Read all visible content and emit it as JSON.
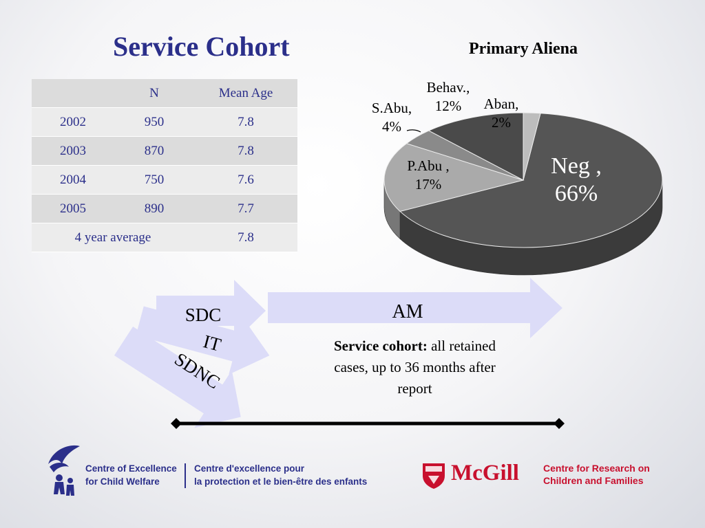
{
  "slide": {
    "title": "Service Cohort"
  },
  "table": {
    "headers": [
      "",
      "N",
      "Mean Age"
    ],
    "rows": [
      {
        "year": "2002",
        "n": "950",
        "age": "7.8"
      },
      {
        "year": "2003",
        "n": "870",
        "age": "7.8"
      },
      {
        "year": "2004",
        "n": "750",
        "age": "7.6"
      },
      {
        "year": "2005",
        "n": "890",
        "age": "7.7"
      }
    ],
    "average_label": "4 year average",
    "average_age": "7.8"
  },
  "chart_data": {
    "type": "pie",
    "title": "Primary Aliena",
    "slices": [
      {
        "label": "Neg ,",
        "pct_text": "66%",
        "value": 66,
        "color": "#555555"
      },
      {
        "label": "P.Abu ,",
        "pct_text": "17%",
        "value": 17,
        "color": "#aaaaaa"
      },
      {
        "label": "S.Abu,",
        "pct_text": "4%",
        "value": 4,
        "color": "#8a8a8a"
      },
      {
        "label": "Behav.,",
        "pct_text": "12%",
        "value": 12,
        "color": "#4a4a4a"
      },
      {
        "label": "Aban,",
        "pct_text": "2%",
        "value": 2,
        "color": "#bdbdbd"
      }
    ],
    "legend": "none",
    "grid": false
  },
  "diagram": {
    "sdc": "SDC",
    "it": "IT",
    "sdnc": "SDNC",
    "am": "AM",
    "desc_bold": "Service cohort:",
    "desc_rest": " all retained cases, up to 36 months after report",
    "arrow_color": "#dcdcf8"
  },
  "footer": {
    "coe_line1": "Centre of Excellence",
    "coe_line2": "for Child Welfare",
    "cep_line1": "Centre d'excellence pour",
    "cep_line2": "la protection et le bien-être des enfants",
    "mcgill": "McGill",
    "crcf_line1": "Centre for Research on",
    "crcf_line2": "Children and Families"
  }
}
